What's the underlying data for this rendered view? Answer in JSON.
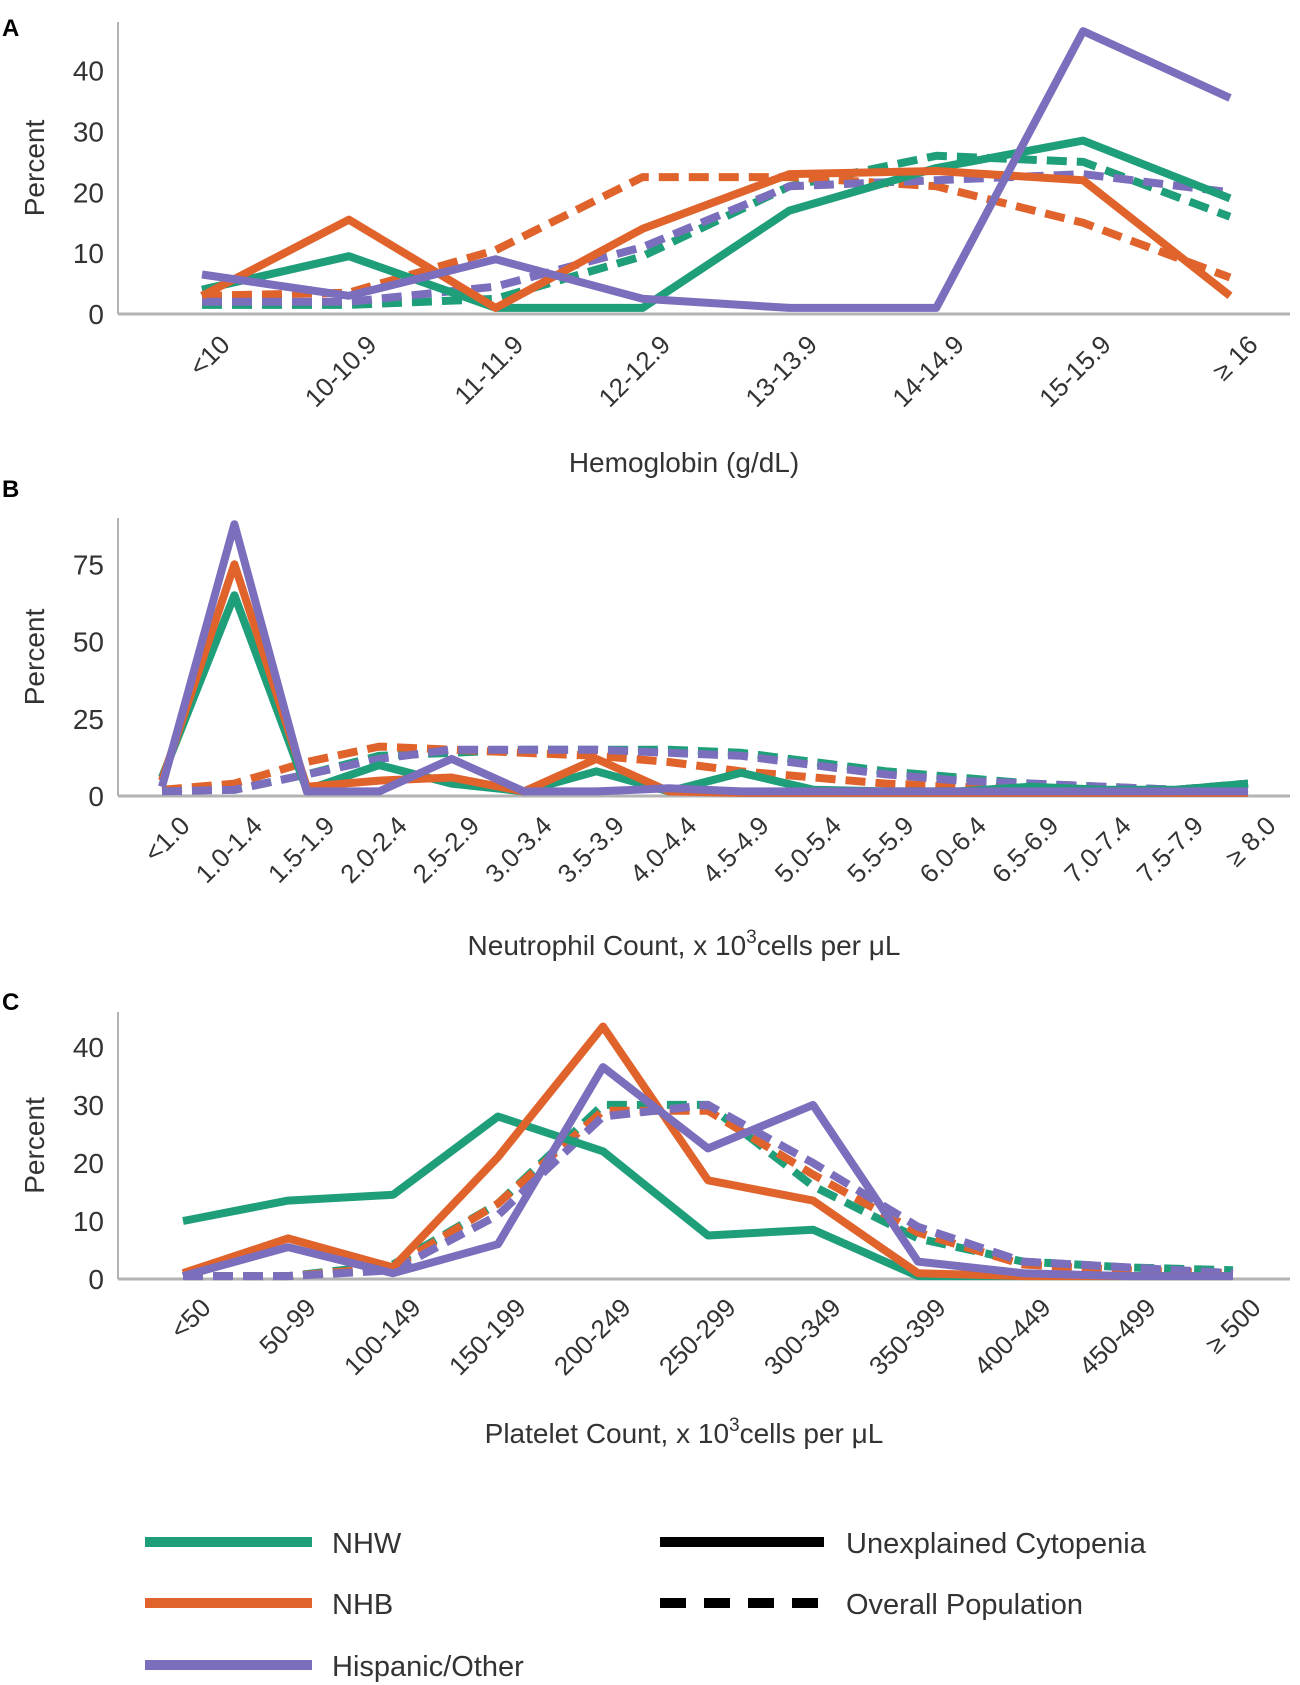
{
  "figure": {
    "series_meta": [
      {
        "key": "NHW",
        "name": "NHW",
        "color": "#1f9e7a"
      },
      {
        "key": "NHB",
        "name": "NHB",
        "color": "#e0632c"
      },
      {
        "key": "HO",
        "name": "Hispanic/Other",
        "color": "#7b6fbd"
      }
    ],
    "legend": {
      "groups": [
        {
          "name": "NHW",
          "color": "#1f9e7a"
        },
        {
          "name": "NHB",
          "color": "#e0632c"
        },
        {
          "name": "Hispanic/Other",
          "color": "#7b6fbd"
        }
      ],
      "styles": [
        {
          "name": "Unexplained Cytopenia",
          "style": "solid"
        },
        {
          "name": "Overall Population",
          "style": "dashed"
        }
      ]
    }
  },
  "chart_data": [
    {
      "panel": "A",
      "type": "line",
      "ylabel": "Percent",
      "xlabel": "Hemoglobin (g/dL)",
      "xlabel_sup": "",
      "xlabel_after": "",
      "ylim": [
        0,
        48
      ],
      "yticks": [
        0,
        10,
        20,
        30,
        40
      ],
      "categories": [
        "<10",
        "10-10.9",
        "11-11.9",
        "12-12.9",
        "13-13.9",
        "14-14.9",
        "15-15.9",
        "≥ 16"
      ],
      "series": [
        {
          "name": "NHW",
          "group": "NHW",
          "style": "solid",
          "values": [
            4,
            9.5,
            1,
            1,
            17,
            24,
            28.5,
            19
          ]
        },
        {
          "name": "NHB",
          "group": "NHB",
          "style": "solid",
          "values": [
            3,
            15.5,
            1,
            14,
            23,
            23.5,
            22,
            3
          ]
        },
        {
          "name": "Hispanic/Other",
          "group": "HO",
          "style": "solid",
          "values": [
            6.5,
            3,
            9,
            2.5,
            1,
            1,
            46.5,
            35.5
          ]
        },
        {
          "name": "NHW",
          "group": "NHW",
          "style": "dashed",
          "values": [
            1.5,
            1.5,
            2.5,
            9.5,
            21,
            26,
            25,
            16
          ]
        },
        {
          "name": "NHB",
          "group": "NHB",
          "style": "dashed",
          "values": [
            3,
            3.5,
            10.5,
            22.5,
            22.5,
            21,
            15,
            6
          ]
        },
        {
          "name": "Hispanic/Other",
          "group": "HO",
          "style": "dashed",
          "values": [
            2,
            2,
            4.5,
            11,
            21,
            22,
            23,
            20
          ]
        }
      ]
    },
    {
      "panel": "B",
      "type": "line",
      "ylabel": "Percent",
      "xlabel": "Neutrophil Count, x 10",
      "xlabel_sup": "3",
      "xlabel_after": "cells per μL",
      "ylim": [
        0,
        90
      ],
      "yticks": [
        0,
        25,
        50,
        75
      ],
      "categories": [
        "<1.0",
        "1.0-1.4",
        "1.5-1.9",
        "2.0-2.4",
        "2.5-2.9",
        "3.0-3.4",
        "3.5-3.9",
        "4.0-4.4",
        "4.5-4.9",
        "5.0-5.4",
        "5.5-5.9",
        "6.0-6.4",
        "6.5-6.9",
        "7.0-7.4",
        "7.5-7.9",
        "≥ 8.0"
      ],
      "series": [
        {
          "name": "NHW",
          "group": "NHW",
          "style": "solid",
          "values": [
            6,
            65,
            2,
            10,
            4,
            1.5,
            8,
            1.5,
            7.5,
            2,
            1.5,
            1.5,
            3,
            2,
            2,
            4
          ]
        },
        {
          "name": "NHB",
          "group": "NHB",
          "style": "solid",
          "values": [
            5,
            75,
            3,
            5,
            6,
            1.5,
            12,
            1.5,
            1,
            1,
            1,
            1,
            1,
            1,
            1,
            1
          ]
        },
        {
          "name": "Hispanic/Other",
          "group": "HO",
          "style": "solid",
          "values": [
            3,
            88,
            1.5,
            1.5,
            12,
            1.5,
            1.5,
            2.5,
            1.5,
            1.5,
            1.5,
            1.5,
            1.5,
            1.5,
            1.5,
            1.5
          ]
        },
        {
          "name": "NHW",
          "group": "NHW",
          "style": "dashed",
          "values": [
            2,
            2,
            7,
            13,
            14,
            15,
            15,
            15,
            14,
            11,
            8,
            6,
            4,
            3,
            2,
            4
          ]
        },
        {
          "name": "NHB",
          "group": "NHB",
          "style": "dashed",
          "values": [
            2,
            4,
            11,
            16,
            15,
            14,
            13,
            11,
            8,
            6,
            4,
            3,
            2,
            2,
            1,
            2
          ]
        },
        {
          "name": "Hispanic/Other",
          "group": "HO",
          "style": "dashed",
          "values": [
            1.5,
            2,
            7,
            12,
            15,
            15,
            15,
            14,
            13,
            10,
            7,
            5,
            4,
            3,
            2,
            4
          ]
        }
      ]
    },
    {
      "panel": "C",
      "type": "line",
      "ylabel": "Percent",
      "xlabel": "Platelet Count, x 10",
      "xlabel_sup": "3",
      "xlabel_after": "cells per μL",
      "ylim": [
        0,
        46
      ],
      "yticks": [
        0,
        10,
        20,
        30,
        40
      ],
      "categories": [
        "<50",
        "50-99",
        "100-149",
        "150-199",
        "200-249",
        "250-299",
        "300-349",
        "350-399",
        "400-449",
        "450-499",
        "≥ 500"
      ],
      "series": [
        {
          "name": "NHW",
          "group": "NHW",
          "style": "solid",
          "values": [
            10,
            13.5,
            14.5,
            28,
            22,
            7.5,
            8.5,
            0.5,
            0.5,
            0.5,
            0.5
          ]
        },
        {
          "name": "NHB",
          "group": "NHB",
          "style": "solid",
          "values": [
            1,
            7,
            2,
            21,
            43.5,
            17,
            13.5,
            1,
            0.5,
            0.5,
            0.5
          ]
        },
        {
          "name": "Hispanic/Other",
          "group": "HO",
          "style": "solid",
          "values": [
            0.5,
            5.5,
            1,
            6,
            36.5,
            22.5,
            30,
            3,
            1,
            0.5,
            0.5
          ]
        },
        {
          "name": "NHW",
          "group": "NHW",
          "style": "dashed",
          "values": [
            0.5,
            0.5,
            2.5,
            13,
            30,
            30,
            16,
            7,
            3,
            2,
            1.5
          ]
        },
        {
          "name": "NHB",
          "group": "NHB",
          "style": "dashed",
          "values": [
            0.5,
            0.5,
            2,
            13,
            29,
            29,
            18,
            8,
            2.5,
            1.5,
            1
          ]
        },
        {
          "name": "Hispanic/Other",
          "group": "HO",
          "style": "dashed",
          "values": [
            0.5,
            0.5,
            1.5,
            11,
            28,
            30,
            20,
            9,
            3,
            2,
            1
          ]
        }
      ]
    }
  ]
}
